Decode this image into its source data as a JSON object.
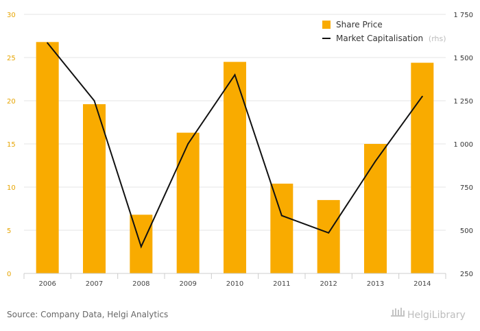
{
  "chart_data": {
    "type": "bar",
    "categories": [
      "2006",
      "2007",
      "2008",
      "2009",
      "2010",
      "2011",
      "2012",
      "2013",
      "2014"
    ],
    "series": [
      {
        "name": "Share Price",
        "type": "bar",
        "axis": "left",
        "color": "#f9ab00",
        "values": [
          26.8,
          19.6,
          6.8,
          16.3,
          24.5,
          10.4,
          8.5,
          15.0,
          24.4
        ]
      },
      {
        "name": "Market Capitalisation",
        "name_suffix": "(rhs)",
        "type": "line",
        "axis": "right",
        "color": "#111111",
        "values": [
          1585,
          1250,
          405,
          1000,
          1400,
          585,
          485,
          900,
          1275
        ]
      }
    ],
    "y_left": {
      "ylim": [
        0,
        30
      ],
      "ticks": [
        "0",
        "5",
        "10",
        "15",
        "20",
        "25",
        "30"
      ],
      "tick_values": [
        0,
        5,
        10,
        15,
        20,
        25,
        30
      ]
    },
    "y_right": {
      "ylim": [
        250,
        1750
      ],
      "ticks": [
        "250",
        "500",
        "750",
        "1 000",
        "1 250",
        "1 500",
        "1 750"
      ],
      "tick_values": [
        250,
        500,
        750,
        1000,
        1250,
        1500,
        1750
      ]
    },
    "grid": true,
    "legend_position": "top-right"
  },
  "footer": {
    "source": "Source: Company Data, Helgi Analytics",
    "logo": "HelgiLibrary"
  }
}
